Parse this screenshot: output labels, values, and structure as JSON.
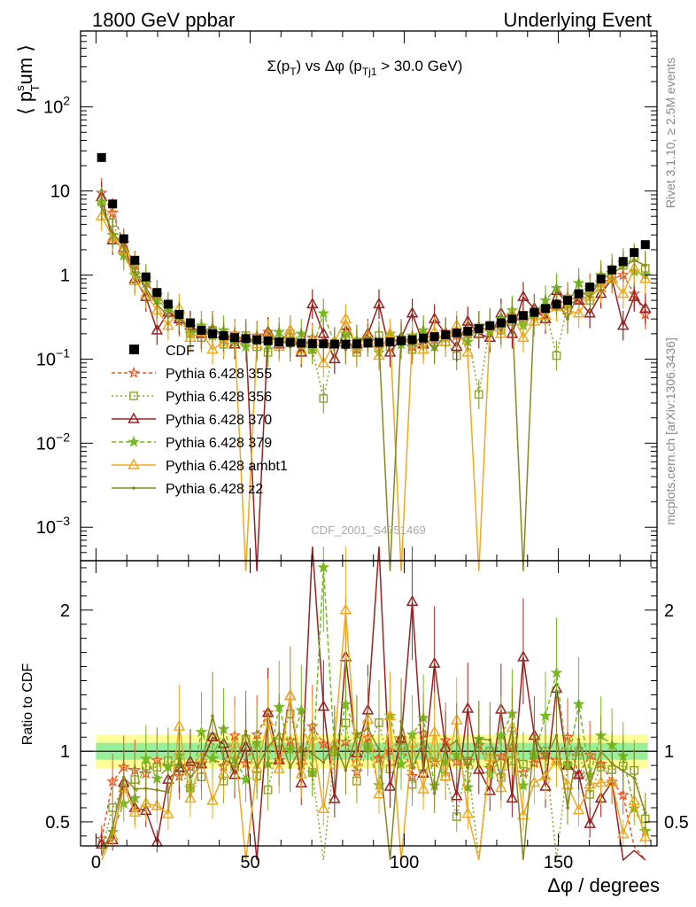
{
  "header": {
    "left": "1800 GeV ppbar",
    "right": "Underlying Event"
  },
  "side_labels": {
    "rivet": "Rivet 3.1.10, ≥ 2.5M events",
    "mcplots": "mcplots.cern.ch [arXiv:1306.3436]"
  },
  "chart_data": {
    "type": "scatter",
    "title": "Σ(p_T) vs Δφ (p_Tj1 > 30.0 GeV)",
    "watermark": "CDF_2001_S4751469",
    "xlabel": "Δφ / degrees",
    "ylabel": "⟨ p_T^sum ⟩",
    "ratio_ylabel": "Ratio to CDF",
    "xlim": [
      -5,
      182
    ],
    "ylim": [
      0.0004,
      800
    ],
    "yscale": "log",
    "ratio_ylim": [
      0.33,
      2.35
    ],
    "x_ticks": [
      0,
      50,
      100,
      150
    ],
    "y_ticks": [
      {
        "value": 0.001,
        "base": "10",
        "exp": "−3"
      },
      {
        "value": 0.01,
        "base": "10",
        "exp": "−2"
      },
      {
        "value": 0.1,
        "base": "10",
        "exp": "−1"
      },
      {
        "value": 1,
        "base": "1",
        "exp": ""
      },
      {
        "value": 10,
        "base": "10",
        "exp": ""
      },
      {
        "value": 100,
        "base": "10",
        "exp": "2"
      }
    ],
    "ratio_ticks": [
      "0.5",
      "1",
      "2"
    ],
    "legend_position": "left-middle",
    "data": {
      "name": "CDF",
      "x": [
        1.8,
        5.4,
        9,
        12.6,
        16.2,
        19.8,
        23.4,
        27,
        30.6,
        34.2,
        37.8,
        41.4,
        45,
        48.6,
        52.2,
        55.8,
        59.4,
        63,
        66.6,
        70.2,
        73.8,
        77.4,
        81,
        84.6,
        88.2,
        91.8,
        95.4,
        99,
        102.6,
        106.2,
        109.8,
        113.4,
        117,
        120.6,
        124.2,
        127.8,
        131.4,
        135,
        138.6,
        142.2,
        145.8,
        149.4,
        153,
        156.6,
        160.2,
        163.8,
        167.4,
        171,
        174.6,
        178.2
      ],
      "y": [
        25,
        7,
        2.7,
        1.5,
        0.95,
        0.62,
        0.45,
        0.34,
        0.27,
        0.22,
        0.2,
        0.19,
        0.18,
        0.175,
        0.17,
        0.165,
        0.16,
        0.158,
        0.155,
        0.153,
        0.152,
        0.151,
        0.15,
        0.152,
        0.155,
        0.158,
        0.16,
        0.165,
        0.17,
        0.178,
        0.185,
        0.195,
        0.205,
        0.215,
        0.23,
        0.25,
        0.27,
        0.3,
        0.33,
        0.36,
        0.4,
        0.45,
        0.5,
        0.6,
        0.72,
        0.9,
        1.15,
        1.45,
        1.85,
        2.3
      ]
    },
    "series": [
      {
        "name": "Pythia 6.428 355",
        "color": "#ee5522",
        "marker": "star-open",
        "dash": "4,3",
        "values": [
          9.5,
          5.5,
          2.4,
          1.3,
          0.8,
          0.58,
          0.4,
          0.28,
          0.24,
          0.2,
          0.19,
          0.17,
          0.2,
          0.16,
          0.19,
          0.21,
          0.15,
          0.17,
          0.14,
          0.18,
          0.16,
          0.15,
          0.16,
          0.13,
          0.17,
          0.15,
          0.16,
          0.18,
          0.14,
          0.2,
          0.17,
          0.21,
          0.19,
          0.2,
          0.24,
          0.22,
          0.26,
          0.31,
          0.28,
          0.33,
          0.39,
          0.42,
          0.55,
          0.5,
          0.7,
          0.82,
          0.9,
          1.0,
          0.6,
          0.34
        ]
      },
      {
        "name": "Pythia 6.428 356",
        "color": "#8fa42a",
        "marker": "square-open",
        "dash": "2,3",
        "values": [
          7.5,
          4.2,
          2.0,
          1.2,
          0.85,
          0.55,
          0.42,
          0.3,
          0.2,
          0.18,
          0.22,
          0.15,
          0.16,
          0.19,
          0.14,
          0.12,
          0.17,
          0.2,
          0.15,
          0.13,
          0.034,
          0.15,
          0.18,
          0.12,
          0.16,
          0.19,
          0.14,
          0.17,
          0.13,
          0.15,
          0.18,
          0.16,
          0.11,
          0.2,
          0.038,
          0.25,
          0.22,
          0.28,
          0.3,
          0.35,
          0.4,
          0.11,
          0.45,
          0.6,
          0.5,
          0.8,
          1.0,
          1.3,
          1.6,
          1.2
        ]
      },
      {
        "name": "Pythia 6.428 370",
        "color": "#992222",
        "marker": "triangle-open",
        "dash": "",
        "values": [
          8.5,
          2.6,
          2.1,
          0.9,
          0.55,
          0.22,
          0.36,
          0.3,
          0.25,
          0.2,
          0.22,
          0.2,
          0.15,
          0.18,
          0.0003,
          0.21,
          0.15,
          0.22,
          0.12,
          0.45,
          0.2,
          0.1,
          0.25,
          0.15,
          0.2,
          0.45,
          0.12,
          0.18,
          0.35,
          0.15,
          0.3,
          0.2,
          0.14,
          0.28,
          0.2,
          0.18,
          0.35,
          0.2,
          0.55,
          0.4,
          0.3,
          0.65,
          0.45,
          0.5,
          0.35,
          0.6,
          0.9,
          0.25,
          0.55,
          0.4
        ]
      },
      {
        "name": "Pythia 6.428 379",
        "color": "#77bb22",
        "marker": "star-filled",
        "dash": "5,3",
        "values": [
          7.5,
          3.0,
          1.7,
          1.0,
          0.9,
          0.5,
          0.4,
          0.33,
          0.2,
          0.25,
          0.19,
          0.22,
          0.17,
          0.14,
          0.18,
          0.15,
          0.21,
          0.16,
          0.2,
          0.13,
          0.35,
          0.15,
          0.2,
          0.17,
          0.16,
          0.12,
          0.2,
          0.15,
          0.19,
          0.22,
          0.14,
          0.18,
          0.2,
          0.16,
          0.25,
          0.21,
          0.3,
          0.38,
          0.25,
          0.35,
          0.5,
          0.7,
          0.45,
          0.8,
          0.6,
          1.0,
          1.2,
          1.4,
          1.1,
          1.0
        ]
      },
      {
        "name": "Pythia 6.428 ambt1",
        "color": "#eeaa22",
        "marker": "triangle-open",
        "dash": "",
        "values": [
          5.0,
          2.8,
          2.0,
          0.85,
          0.6,
          0.38,
          0.25,
          0.4,
          0.18,
          0.21,
          0.13,
          0.16,
          0.19,
          0.0003,
          0.15,
          0.2,
          0.14,
          0.22,
          0.13,
          0.17,
          0.09,
          0.16,
          0.3,
          0.14,
          0.19,
          0.11,
          0.2,
          0.0003,
          0.18,
          0.13,
          0.21,
          0.16,
          0.25,
          0.12,
          0.0003,
          0.24,
          0.2,
          0.35,
          0.18,
          0.28,
          0.33,
          0.42,
          0.38,
          0.35,
          0.55,
          0.7,
          0.9,
          0.6,
          1.2,
          0.9
        ]
      },
      {
        "name": "Pythia 6.428 z2",
        "color": "#888820",
        "marker": "dot",
        "dash": "",
        "values": [
          6.5,
          3.2,
          2.2,
          1.1,
          0.7,
          0.45,
          0.32,
          0.32,
          0.22,
          0.2,
          0.25,
          0.18,
          0.16,
          0.2,
          0.15,
          0.17,
          0.18,
          0.14,
          0.16,
          0.15,
          0.14,
          0.16,
          0.13,
          0.17,
          0.18,
          0.16,
          0.0003,
          0.2,
          0.15,
          0.19,
          0.13,
          0.2,
          0.22,
          0.19,
          0.25,
          0.27,
          0.22,
          0.35,
          0.0003,
          0.4,
          0.38,
          0.5,
          0.3,
          0.65,
          0.55,
          0.9,
          1.05,
          1.25,
          1.5,
          1.3
        ]
      }
    ],
    "ratio_bands": {
      "inner": 0.06,
      "outer": 0.12
    }
  }
}
